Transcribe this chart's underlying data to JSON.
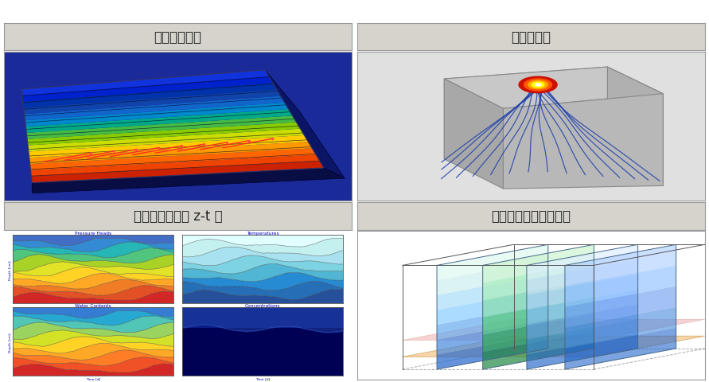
{
  "title_tl": "粒子轨迹示踪",
  "title_tr": "流速流线图",
  "title_bl": "一维模型结果的 z-t 图",
  "title_br": "三维模型结果的切片图",
  "header_bg": "#d6d3cc",
  "cell_bg": "#ffffff",
  "border_color": "#999999",
  "title_fontsize": 12,
  "fig_bg": "#ffffff"
}
